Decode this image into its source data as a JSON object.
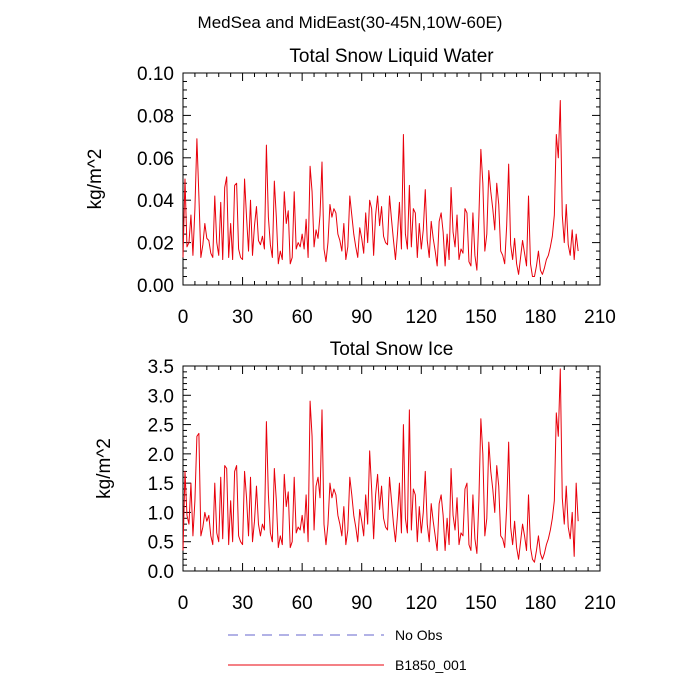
{
  "figure_title": "MedSea and MidEast(30-45N,10W-60E)",
  "legend": [
    {
      "label": "No Obs",
      "color": "#6666cc",
      "style": "dashed"
    },
    {
      "label": "B1850_001",
      "color": "#e8000b",
      "style": "solid"
    }
  ],
  "chart_data": [
    {
      "type": "line",
      "title": "Total Snow Liquid Water",
      "xlabel": "",
      "ylabel": "kg/m^2",
      "xlim": [
        0,
        210
      ],
      "ylim": [
        0,
        0.1
      ],
      "xticks": [
        0,
        30,
        60,
        90,
        120,
        150,
        180,
        210
      ],
      "xtick_labels": [
        "0",
        "30",
        "60",
        "90",
        "120",
        "150",
        "180",
        "210"
      ],
      "yticks": [
        0,
        0.02,
        0.04,
        0.06,
        0.08,
        0.1
      ],
      "ytick_labels": [
        "0.00",
        "0.02",
        "0.04",
        "0.06",
        "0.08",
        "0.10"
      ],
      "series": [
        {
          "name": "B1850_001",
          "color": "#e8000b",
          "x_start": 0,
          "x_step": 1,
          "values": [
            0.013,
            0.05,
            0.018,
            0.02,
            0.033,
            0.014,
            0.036,
            0.069,
            0.042,
            0.013,
            0.019,
            0.029,
            0.022,
            0.021,
            0.015,
            0.013,
            0.042,
            0.02,
            0.014,
            0.039,
            0.012,
            0.046,
            0.051,
            0.013,
            0.029,
            0.012,
            0.047,
            0.048,
            0.017,
            0.013,
            0.012,
            0.05,
            0.032,
            0.016,
            0.04,
            0.014,
            0.028,
            0.037,
            0.021,
            0.019,
            0.023,
            0.017,
            0.066,
            0.032,
            0.019,
            0.013,
            0.049,
            0.032,
            0.01,
            0.016,
            0.012,
            0.044,
            0.029,
            0.035,
            0.01,
            0.013,
            0.044,
            0.017,
            0.02,
            0.018,
            0.024,
            0.017,
            0.031,
            0.013,
            0.056,
            0.044,
            0.018,
            0.026,
            0.022,
            0.033,
            0.058,
            0.017,
            0.011,
            0.02,
            0.038,
            0.032,
            0.036,
            0.034,
            0.024,
            0.021,
            0.016,
            0.029,
            0.012,
            0.018,
            0.042,
            0.033,
            0.024,
            0.018,
            0.013,
            0.027,
            0.022,
            0.015,
            0.034,
            0.02,
            0.04,
            0.036,
            0.014,
            0.033,
            0.042,
            0.028,
            0.037,
            0.023,
            0.02,
            0.019,
            0.042,
            0.031,
            0.021,
            0.012,
            0.024,
            0.039,
            0.017,
            0.071,
            0.024,
            0.017,
            0.047,
            0.018,
            0.036,
            0.034,
            0.013,
            0.029,
            0.017,
            0.026,
            0.045,
            0.021,
            0.013,
            0.03,
            0.022,
            0.016,
            0.009,
            0.03,
            0.034,
            0.025,
            0.009,
            0.024,
            0.012,
            0.046,
            0.025,
            0.018,
            0.033,
            0.012,
            0.017,
            0.015,
            0.036,
            0.034,
            0.011,
            0.009,
            0.034,
            0.014,
            0.007,
            0.032,
            0.064,
            0.048,
            0.016,
            0.024,
            0.054,
            0.044,
            0.036,
            0.026,
            0.048,
            0.038,
            0.016,
            0.014,
            0.01,
            0.028,
            0.057,
            0.019,
            0.012,
            0.022,
            0.01,
            0.005,
            0.013,
            0.021,
            0.015,
            0.009,
            0.042,
            0.01,
            0.004,
            0.004,
            0.009,
            0.016,
            0.007,
            0.005,
            0.008,
            0.012,
            0.014,
            0.018,
            0.023,
            0.033,
            0.071,
            0.06,
            0.087,
            0.033,
            0.02,
            0.038,
            0.019,
            0.014,
            0.026,
            0.012,
            0.024,
            0.016
          ]
        }
      ]
    },
    {
      "type": "line",
      "title": "Total Snow Ice",
      "xlabel": "",
      "ylabel": "kg/m^2",
      "xlim": [
        0,
        210
      ],
      "ylim": [
        0,
        3.5
      ],
      "xticks": [
        0,
        30,
        60,
        90,
        120,
        150,
        180,
        210
      ],
      "xtick_labels": [
        "0",
        "30",
        "60",
        "90",
        "120",
        "150",
        "180",
        "210"
      ],
      "yticks": [
        0,
        0.5,
        1,
        1.5,
        2,
        2.5,
        3,
        3.5
      ],
      "ytick_labels": [
        "0.0",
        "0.5",
        "1.0",
        "1.5",
        "2.0",
        "2.5",
        "3.0",
        "3.5"
      ],
      "series": [
        {
          "name": "B1850_001",
          "color": "#e8000b",
          "x_start": 0,
          "x_step": 1,
          "values": [
            0.35,
            1.7,
            0.95,
            0.8,
            1.5,
            0.6,
            1.2,
            2.3,
            2.35,
            0.6,
            0.75,
            1.0,
            0.85,
            0.95,
            0.6,
            0.45,
            1.5,
            0.65,
            0.5,
            1.6,
            0.55,
            1.8,
            1.75,
            0.45,
            1.2,
            0.5,
            1.7,
            1.8,
            0.6,
            0.5,
            0.45,
            1.7,
            1.25,
            0.6,
            1.6,
            0.5,
            0.85,
            1.45,
            0.8,
            0.6,
            0.8,
            0.7,
            2.55,
            1.3,
            0.65,
            0.5,
            1.75,
            1.2,
            0.4,
            0.6,
            0.45,
            1.65,
            1.1,
            1.35,
            0.4,
            0.5,
            1.6,
            0.65,
            0.75,
            0.7,
            0.95,
            0.65,
            1.3,
            0.5,
            2.9,
            2.3,
            0.7,
            1.45,
            1.6,
            1.25,
            2.75,
            0.8,
            0.45,
            0.8,
            1.5,
            1.25,
            1.4,
            1.3,
            0.95,
            0.8,
            0.6,
            1.1,
            0.45,
            0.7,
            1.6,
            1.3,
            0.95,
            0.75,
            0.5,
            1.05,
            0.85,
            0.6,
            1.3,
            0.8,
            2.05,
            1.4,
            0.55,
            1.3,
            1.65,
            1.05,
            1.45,
            0.9,
            0.75,
            0.7,
            1.6,
            1.2,
            0.8,
            0.5,
            0.95,
            1.5,
            0.65,
            2.5,
            0.9,
            0.65,
            2.75,
            0.7,
            1.4,
            1.3,
            0.5,
            1.1,
            0.65,
            1.0,
            1.7,
            0.8,
            0.5,
            1.15,
            0.85,
            0.6,
            0.35,
            1.15,
            1.3,
            0.95,
            0.35,
            0.9,
            0.45,
            1.75,
            0.95,
            0.7,
            1.25,
            0.45,
            0.65,
            0.6,
            1.4,
            1.5,
            0.45,
            0.35,
            1.3,
            0.55,
            0.3,
            1.2,
            2.6,
            2.0,
            0.6,
            0.9,
            2.2,
            1.7,
            1.4,
            1.0,
            1.8,
            1.45,
            0.6,
            0.55,
            0.4,
            1.1,
            2.2,
            0.75,
            0.45,
            0.85,
            0.4,
            0.2,
            0.5,
            0.8,
            0.6,
            0.35,
            1.3,
            0.4,
            0.2,
            0.15,
            0.35,
            0.6,
            0.3,
            0.2,
            0.3,
            0.45,
            0.55,
            0.7,
            0.9,
            1.2,
            2.7,
            2.3,
            3.45,
            1.25,
            0.8,
            1.45,
            0.75,
            0.55,
            1.0,
            0.25,
            1.5,
            0.85
          ]
        }
      ]
    }
  ]
}
